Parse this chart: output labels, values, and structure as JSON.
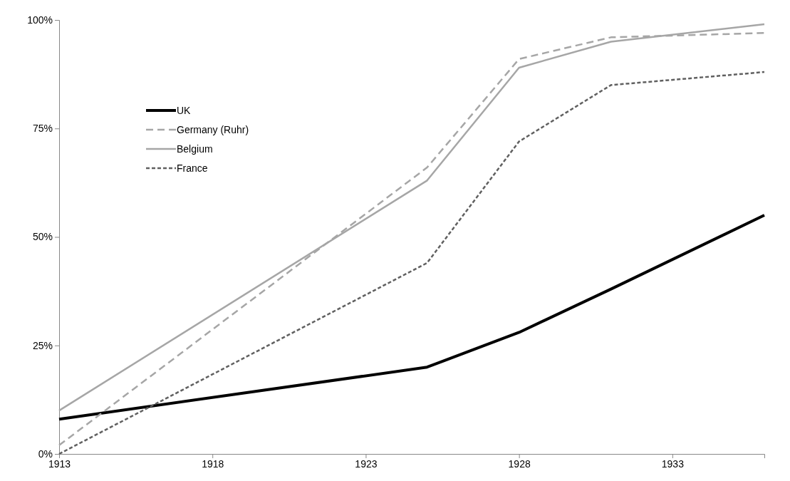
{
  "chart_data": {
    "type": "line",
    "x": [
      1913,
      1925,
      1928,
      1931,
      1936
    ],
    "xlim": [
      1913,
      1936
    ],
    "xticks": [
      1913,
      1918,
      1923,
      1928,
      1933
    ],
    "ylim": [
      0,
      100
    ],
    "yticks": [
      {
        "value": 0,
        "label": "0%"
      },
      {
        "value": 25,
        "label": "25%"
      },
      {
        "value": 50,
        "label": "50%"
      },
      {
        "value": 75,
        "label": "75%"
      },
      {
        "value": 100,
        "label": "100%"
      }
    ],
    "grid": false,
    "legend": "top left",
    "marker": "none",
    "series": [
      {
        "name": "UK",
        "color": "#000000",
        "line_style": "solid",
        "values": [
          8,
          20,
          28,
          38,
          55
        ]
      },
      {
        "name": "Germany (Ruhr)",
        "color": "#a6a6a6",
        "line_style": "dashed",
        "values": [
          2,
          66,
          91,
          96,
          97
        ]
      },
      {
        "name": "Belgium",
        "color": "#a6a6a6",
        "line_style": "solid",
        "values": [
          10,
          63,
          89,
          95,
          99
        ]
      },
      {
        "name": "France",
        "color": "#606060",
        "line_style": "dotted",
        "values": [
          0,
          44,
          72,
          85,
          88
        ]
      }
    ]
  }
}
